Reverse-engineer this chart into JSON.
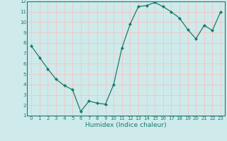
{
  "x": [
    0,
    1,
    2,
    3,
    4,
    5,
    6,
    7,
    8,
    9,
    10,
    11,
    12,
    13,
    14,
    15,
    16,
    17,
    18,
    19,
    20,
    21,
    22,
    23
  ],
  "y": [
    7.7,
    6.6,
    5.5,
    4.5,
    3.9,
    3.5,
    1.4,
    2.4,
    2.2,
    2.1,
    4.0,
    7.5,
    9.8,
    11.5,
    11.6,
    11.9,
    11.5,
    11.0,
    10.4,
    9.3,
    8.4,
    9.7,
    9.2,
    11.0
  ],
  "line_color": "#1a7a6e",
  "marker": "D",
  "markersize": 2.0,
  "linewidth": 0.9,
  "xlabel": "Humidex (Indice chaleur)",
  "xlabel_fontsize": 6.5,
  "xlim": [
    -0.5,
    23.5
  ],
  "ylim": [
    1,
    12
  ],
  "yticks": [
    1,
    2,
    3,
    4,
    5,
    6,
    7,
    8,
    9,
    10,
    11,
    12
  ],
  "xticks": [
    0,
    1,
    2,
    3,
    4,
    5,
    6,
    7,
    8,
    9,
    10,
    11,
    12,
    13,
    14,
    15,
    16,
    17,
    18,
    19,
    20,
    21,
    22,
    23
  ],
  "bg_color": "#ceeaea",
  "grid_color": "#f0c8c8",
  "tick_fontsize": 5.0,
  "fig_bg_color": "#ceeaea",
  "spine_color": "#1a7a6e"
}
